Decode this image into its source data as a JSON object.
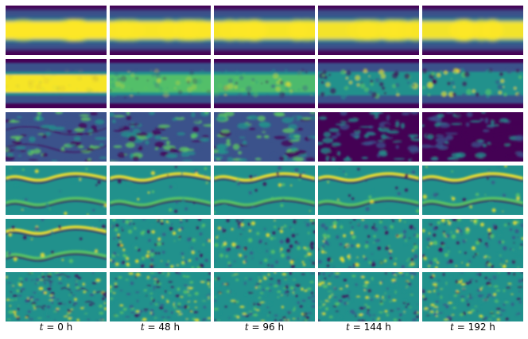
{
  "figure": {
    "colormap": "viridis",
    "colors": {
      "low": "#440154",
      "mid_low": "#3b528b",
      "mid": "#21918c",
      "mid_high": "#5ec962",
      "high": "#fde725",
      "background": "#ffffff"
    },
    "columns": [
      {
        "label_var": "t",
        "label_value": "= 0 h"
      },
      {
        "label_var": "t",
        "label_value": "= 48 h"
      },
      {
        "label_var": "t",
        "label_value": "= 96 h"
      },
      {
        "label_var": "t",
        "label_value": "= 144 h"
      },
      {
        "label_var": "t",
        "label_value": "= 192 h"
      }
    ],
    "rows": [
      {
        "kind": "smooth-band",
        "band_strength": [
          1.0,
          0.97,
          0.95,
          0.93,
          0.92
        ]
      },
      {
        "kind": "noisy-band",
        "band_strength": [
          0.95,
          0.7,
          0.55,
          0.3,
          0.25
        ]
      },
      {
        "kind": "noisy-field",
        "band_strength": [
          0.35,
          0.3,
          0.25,
          0.15,
          0.1
        ]
      },
      {
        "kind": "vortex-band",
        "band_strength": [
          0.9,
          0.85,
          0.85,
          0.85,
          0.85
        ]
      },
      {
        "kind": "vortex-to-speckle",
        "band_strength": [
          0.9,
          0.35,
          0.15,
          0.1,
          0.1
        ]
      },
      {
        "kind": "speckle",
        "band_strength": [
          0.2,
          0.1,
          0.05,
          0.05,
          0.05
        ]
      }
    ]
  }
}
